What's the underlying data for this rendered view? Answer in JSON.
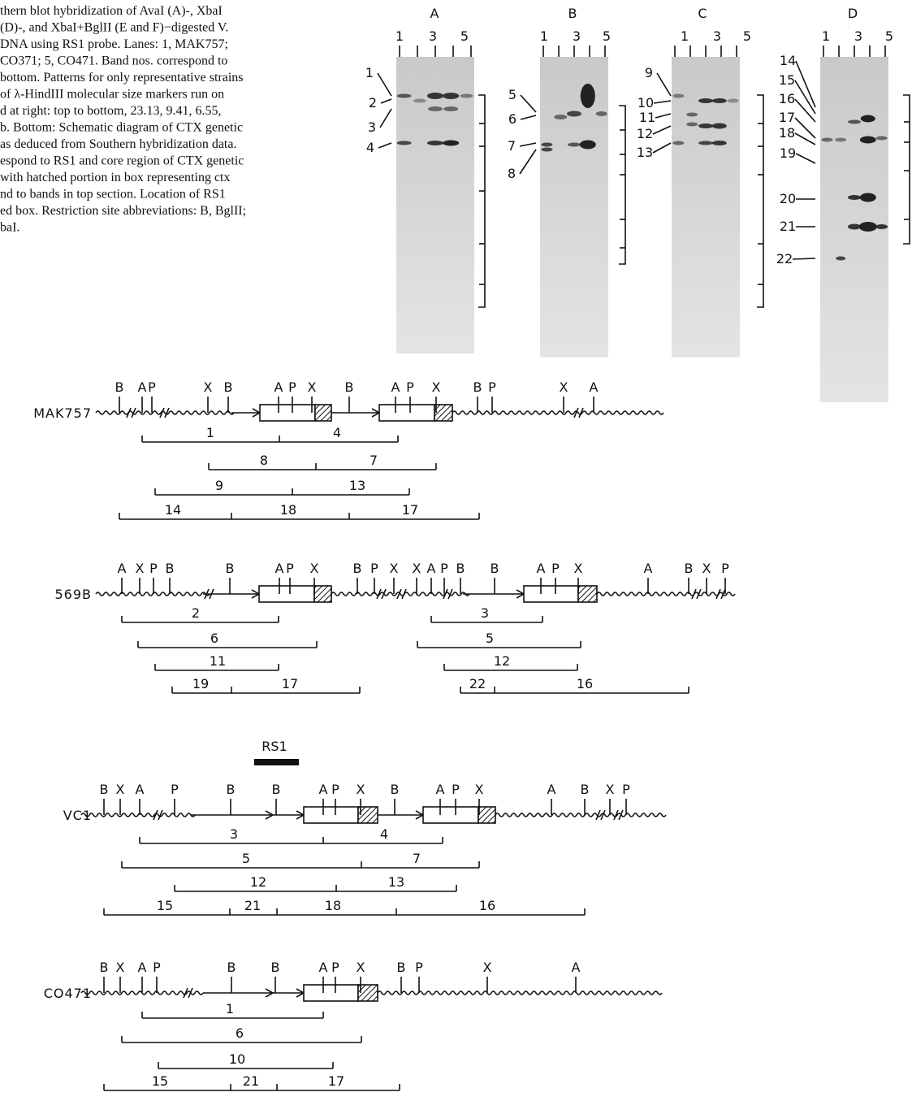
{
  "caption": [
    "thern blot hybridization of AvaI (A)-, XbaI",
    "(D)-, and XbaI+BglII (E and F)−digested V.",
    "DNA using RS1 probe. Lanes: 1, MAK757;",
    "CO371; 5, CO471. Band nos. correspond to",
    "bottom. Patterns for only representative strains",
    "of λ-HindIII molecular size markers run on",
    "d at right: top to bottom, 23.13, 9.41, 6.55,",
    "b. Bottom: Schematic diagram of CTX genetic",
    "as deduced from Southern hybridization data.",
    "espond to RS1 and core region of CTX genetic",
    "with hatched portion in box representing ctx",
    "nd to bands in top section. Location of RS1",
    "ed box. Restriction site abbreviations: B, BglII;",
    "baI."
  ],
  "gels": [
    {
      "panel": "A",
      "lanes": [
        "1",
        "3",
        "5"
      ],
      "bands": [
        "1",
        "2",
        "3",
        "4"
      ]
    },
    {
      "panel": "B",
      "lanes": [
        "1",
        "3",
        "5"
      ],
      "bands": [
        "5",
        "6",
        "7",
        "8"
      ]
    },
    {
      "panel": "C",
      "lanes": [
        "1",
        "3",
        "5"
      ],
      "bands": [
        "9",
        "10",
        "11",
        "12",
        "13"
      ]
    },
    {
      "panel": "D",
      "lanes": [
        "1",
        "3",
        "5"
      ],
      "bands": [
        "14",
        "15",
        "16",
        "17",
        "18",
        "19",
        "20",
        "21",
        "22"
      ]
    }
  ],
  "rs1_label": "RS1",
  "maps": [
    {
      "strain": "MAK757",
      "sites": [
        "B",
        "A",
        "P",
        "X",
        "B",
        "A",
        "P",
        "X",
        "B",
        "A",
        "P",
        "X",
        "B",
        "P",
        "X",
        "A"
      ],
      "fragments": [
        "1",
        "4",
        "8",
        "7",
        "9",
        "13",
        "14",
        "18",
        "17"
      ]
    },
    {
      "strain": "569B",
      "sites": [
        "A",
        "X",
        "P",
        "B",
        "B",
        "A",
        "P",
        "X",
        "B",
        "P",
        "X",
        "X",
        "A",
        "P",
        "B",
        "B",
        "A",
        "P",
        "X",
        "A",
        "B",
        "X",
        "P"
      ],
      "fragments": [
        "2",
        "6",
        "11",
        "19",
        "17",
        "3",
        "5",
        "12",
        "22",
        "16"
      ]
    },
    {
      "strain": "VC1",
      "sites": [
        "B",
        "X",
        "A",
        "P",
        "B",
        "B",
        "A",
        "P",
        "X",
        "B",
        "A",
        "P",
        "X",
        "A",
        "B",
        "X",
        "P"
      ],
      "fragments": [
        "3",
        "4",
        "5",
        "7",
        "12",
        "13",
        "15",
        "21",
        "18",
        "16"
      ]
    },
    {
      "strain": "CO471",
      "sites": [
        "B",
        "X",
        "A",
        "P",
        "B",
        "B",
        "A",
        "P",
        "X",
        "B",
        "P",
        "X",
        "A"
      ],
      "fragments": [
        "1",
        "6",
        "10",
        "15",
        "21",
        "17"
      ]
    }
  ]
}
